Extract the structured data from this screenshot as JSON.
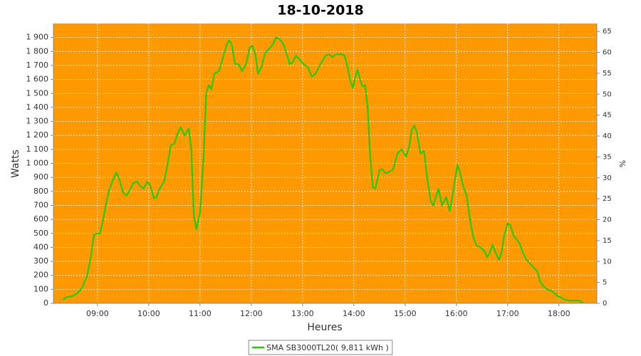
{
  "chart_data": {
    "type": "line",
    "title": "18-10-2018",
    "x_label": "Heures",
    "y_label": "Watts",
    "y2_label": "%",
    "background": "#ff9900",
    "grid": true,
    "xlim": [
      8.14,
      18.74
    ],
    "xticks": [
      {
        "value": 9,
        "label": "09:00"
      },
      {
        "value": 10,
        "label": "10:00"
      },
      {
        "value": 11,
        "label": "11:00"
      },
      {
        "value": 12,
        "label": "12:00"
      },
      {
        "value": 13,
        "label": "13:00"
      },
      {
        "value": 14,
        "label": "14:00"
      },
      {
        "value": 15,
        "label": "15:00"
      },
      {
        "value": 16,
        "label": "16:00"
      },
      {
        "value": 17,
        "label": "17:00"
      },
      {
        "value": 18,
        "label": "18:00"
      }
    ],
    "ylim": [
      0,
      2000
    ],
    "yticks": [
      0,
      100,
      200,
      300,
      400,
      500,
      600,
      700,
      800,
      900,
      {
        "value": 1000,
        "label": "1 000"
      },
      {
        "value": 1100,
        "label": "1 100"
      },
      {
        "value": 1200,
        "label": "1 200"
      },
      {
        "value": 1300,
        "label": "1 300"
      },
      {
        "value": 1400,
        "label": "1 400"
      },
      {
        "value": 1500,
        "label": "1 500"
      },
      {
        "value": 1600,
        "label": "1 600"
      },
      {
        "value": 1700,
        "label": "1 700"
      },
      {
        "value": 1800,
        "label": "1 800"
      },
      {
        "value": 1900,
        "label": "1 900"
      }
    ],
    "y2lim": [
      0,
      66.9
    ],
    "y2ticks": [
      0,
      5,
      10,
      15,
      20,
      25,
      30,
      35,
      40,
      45,
      50,
      55,
      60,
      65
    ],
    "x": [
      8.32,
      8.4,
      8.5,
      8.6,
      8.7,
      8.8,
      8.87,
      8.93,
      9.0,
      9.05,
      9.1,
      9.15,
      9.22,
      9.3,
      9.37,
      9.43,
      9.5,
      9.57,
      9.63,
      9.7,
      9.77,
      9.83,
      9.9,
      9.97,
      10.03,
      10.1,
      10.15,
      10.2,
      10.3,
      10.37,
      10.43,
      10.5,
      10.55,
      10.62,
      10.7,
      10.78,
      10.83,
      10.88,
      10.93,
      11.0,
      11.07,
      11.12,
      11.17,
      11.22,
      11.28,
      11.37,
      11.45,
      11.52,
      11.57,
      11.62,
      11.68,
      11.75,
      11.82,
      11.9,
      11.97,
      12.02,
      12.08,
      12.13,
      12.2,
      12.27,
      12.35,
      12.42,
      12.48,
      12.55,
      12.63,
      12.7,
      12.75,
      12.8,
      12.87,
      12.95,
      13.02,
      13.1,
      13.18,
      13.25,
      13.35,
      13.45,
      13.52,
      13.58,
      13.65,
      13.75,
      13.82,
      13.87,
      13.93,
      13.98,
      14.03,
      14.07,
      14.12,
      14.17,
      14.22,
      14.27,
      14.32,
      14.37,
      14.42,
      14.5,
      14.55,
      14.62,
      14.7,
      14.77,
      14.85,
      14.93,
      15.02,
      15.08,
      15.13,
      15.18,
      15.23,
      15.3,
      15.37,
      15.43,
      15.5,
      15.55,
      15.6,
      15.65,
      15.72,
      15.8,
      15.87,
      15.93,
      15.98,
      16.02,
      16.07,
      16.13,
      16.2,
      16.27,
      16.33,
      16.4,
      16.47,
      16.55,
      16.6,
      16.65,
      16.7,
      16.77,
      16.83,
      16.88,
      16.93,
      17.0,
      17.05,
      17.12,
      17.17,
      17.23,
      17.3,
      17.37,
      17.45,
      17.52,
      17.58,
      17.63,
      17.7,
      17.77,
      17.85,
      17.92,
      17.98,
      18.05,
      18.12,
      18.2,
      18.3,
      18.4,
      18.47
    ],
    "series": [
      {
        "name": "SMA SB3000TL20( 9,811 kWh )",
        "color": "#22cc00",
        "values": [
          25,
          45,
          50,
          70,
          110,
          200,
          330,
          490,
          500,
          500,
          580,
          680,
          800,
          880,
          935,
          880,
          790,
          770,
          810,
          860,
          870,
          840,
          820,
          870,
          840,
          750,
          760,
          810,
          870,
          1000,
          1130,
          1140,
          1200,
          1260,
          1200,
          1250,
          1100,
          620,
          530,
          650,
          1050,
          1500,
          1560,
          1530,
          1640,
          1660,
          1760,
          1850,
          1880,
          1850,
          1710,
          1710,
          1660,
          1710,
          1830,
          1840,
          1780,
          1640,
          1690,
          1790,
          1820,
          1850,
          1900,
          1890,
          1850,
          1770,
          1710,
          1720,
          1770,
          1740,
          1710,
          1690,
          1620,
          1640,
          1710,
          1770,
          1780,
          1760,
          1780,
          1780,
          1770,
          1700,
          1590,
          1540,
          1620,
          1670,
          1600,
          1550,
          1560,
          1400,
          1050,
          830,
          820,
          950,
          960,
          930,
          940,
          960,
          1070,
          1100,
          1050,
          1120,
          1240,
          1270,
          1220,
          1070,
          1090,
          900,
          730,
          700,
          760,
          820,
          700,
          760,
          660,
          780,
          900,
          990,
          940,
          840,
          770,
          590,
          470,
          410,
          400,
          370,
          330,
          360,
          420,
          360,
          310,
          360,
          480,
          570,
          560,
          480,
          460,
          430,
          360,
          310,
          280,
          250,
          230,
          160,
          120,
          100,
          90,
          70,
          50,
          40,
          25,
          20,
          20,
          20,
          5
        ]
      }
    ]
  }
}
